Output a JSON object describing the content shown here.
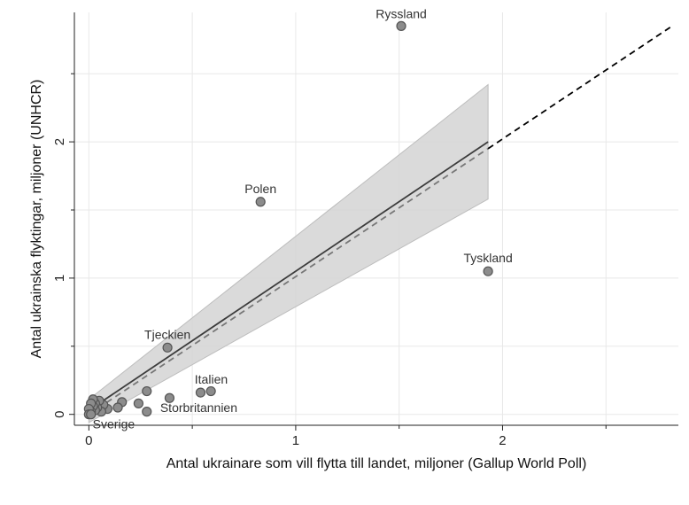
{
  "chart_data": {
    "type": "scatter",
    "xlabel": "Antal ukrainare som vill flytta till landet, miljoner (Gallup World Poll)",
    "ylabel": "Antal ukrainska flyktingar, miljoner (UNHCR)",
    "xlim": [
      -0.07,
      2.85
    ],
    "ylim": [
      -0.08,
      2.95
    ],
    "x_ticks": [
      0,
      1,
      2
    ],
    "y_ticks": [
      0,
      1,
      2
    ],
    "x_tick_labels": [
      "0",
      "1",
      "2"
    ],
    "y_tick_labels": [
      "0",
      "1",
      "2"
    ],
    "grid": true,
    "points": [
      {
        "x": 1.51,
        "y": 2.85,
        "label": "Ryssland"
      },
      {
        "x": 0.83,
        "y": 1.56,
        "label": "Polen"
      },
      {
        "x": 1.93,
        "y": 1.05,
        "label": "Tyskland"
      },
      {
        "x": 0.38,
        "y": 0.49,
        "label": "Tjeckien"
      },
      {
        "x": 0.54,
        "y": 0.16,
        "label": "Italien"
      },
      {
        "x": 0.59,
        "y": 0.17,
        "label": ""
      },
      {
        "x": 0.39,
        "y": 0.12,
        "label": "Storbritannien"
      },
      {
        "x": 0.28,
        "y": 0.17,
        "label": ""
      },
      {
        "x": 0.24,
        "y": 0.08,
        "label": ""
      },
      {
        "x": 0.28,
        "y": 0.02,
        "label": ""
      },
      {
        "x": 0.16,
        "y": 0.09,
        "label": ""
      },
      {
        "x": 0.14,
        "y": 0.05,
        "label": ""
      },
      {
        "x": 0.09,
        "y": 0.04,
        "label": ""
      },
      {
        "x": 0.07,
        "y": 0.07,
        "label": ""
      },
      {
        "x": 0.06,
        "y": 0.02,
        "label": ""
      },
      {
        "x": 0.05,
        "y": 0.1,
        "label": ""
      },
      {
        "x": 0.04,
        "y": 0.05,
        "label": ""
      },
      {
        "x": 0.03,
        "y": 0.08,
        "label": ""
      },
      {
        "x": 0.03,
        "y": 0.03,
        "label": ""
      },
      {
        "x": 0.02,
        "y": 0.11,
        "label": ""
      },
      {
        "x": 0.02,
        "y": 0.06,
        "label": ""
      },
      {
        "x": 0.01,
        "y": 0.02,
        "label": ""
      },
      {
        "x": 0.01,
        "y": 0.08,
        "label": ""
      },
      {
        "x": 0.0,
        "y": 0.04,
        "label": ""
      },
      {
        "x": 0.0,
        "y": 0.0,
        "label": ""
      },
      {
        "x": 0.01,
        "y": 0.0,
        "label": "Sverige"
      }
    ],
    "fit_line": {
      "x": [
        0.0,
        1.93
      ],
      "y": [
        0.03,
        2.0
      ]
    },
    "confidence_band": {
      "x": [
        0.0,
        1.93
      ],
      "lower": [
        -0.06,
        1.58
      ],
      "upper": [
        0.11,
        2.42
      ]
    },
    "dashed_line": {
      "x": [
        0.0,
        2.82
      ],
      "y": [
        0.0,
        2.85
      ]
    },
    "colors": {
      "point_fill": "#8c8c8c",
      "point_stroke": "#555555",
      "fit_line": "#3c3c3c",
      "dashed_line": "#000000",
      "band": "#d3d3d3",
      "grid": "#e8e8e8",
      "axis": "#222222"
    }
  }
}
